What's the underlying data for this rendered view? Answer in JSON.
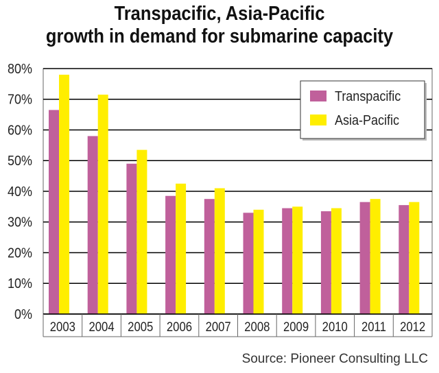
{
  "title_line1": "Transpacific, Asia-Pacific",
  "title_line2": "growth in demand for submarine capacity",
  "source": "Source: Pioneer Consulting LLC",
  "colors": {
    "transpacific": "#c0609b",
    "asia_pacific": "#ffee00",
    "grid": "#000000",
    "plot_border": "#666666"
  },
  "chart_data": {
    "type": "bar",
    "categories": [
      "2003",
      "2004",
      "2005",
      "2006",
      "2007",
      "2008",
      "2009",
      "2010",
      "2011",
      "2012"
    ],
    "series": [
      {
        "name": "Transpacific",
        "values": [
          66.5,
          58,
          49,
          38.5,
          37.5,
          33,
          34.5,
          33.5,
          36.5,
          35.5
        ]
      },
      {
        "name": "Asia-Pacific",
        "values": [
          78,
          71.5,
          53.5,
          42.5,
          41,
          34,
          35,
          34.5,
          37.5,
          36.5
        ]
      }
    ],
    "yticks": [
      "0%",
      "10%",
      "20%",
      "30%",
      "40%",
      "50%",
      "60%",
      "70%",
      "80%"
    ],
    "ylim": [
      0,
      80
    ],
    "grid": true,
    "legend_position": "top-right"
  }
}
